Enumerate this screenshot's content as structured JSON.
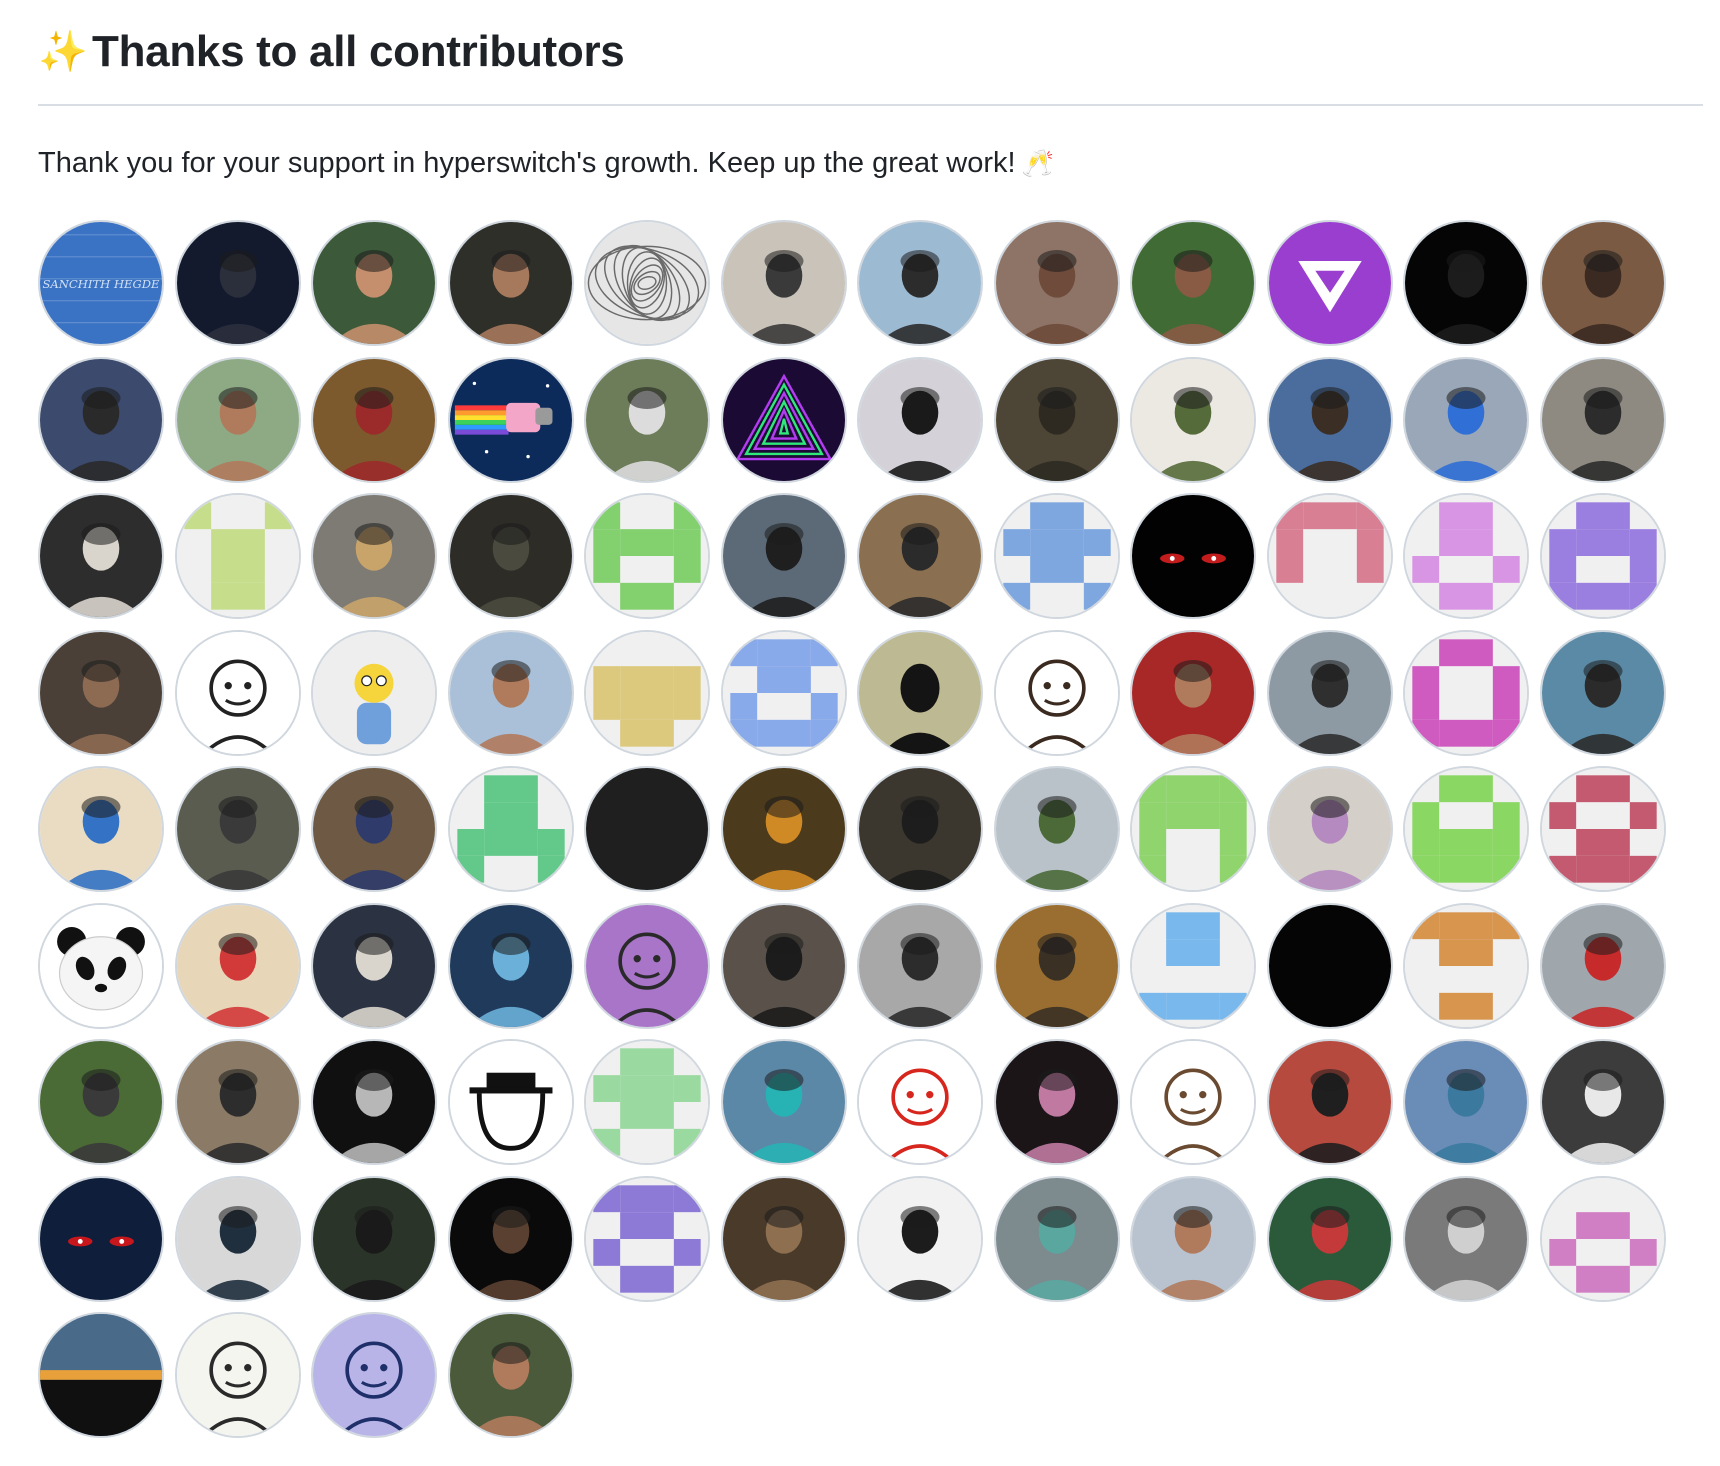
{
  "section": {
    "title": "Thanks to all contributors",
    "title_icon": "sparkles-icon",
    "message": "Thank you for your support in hyperswitch's growth. Keep up the great work!",
    "message_icon": "clinking-glasses-icon"
  },
  "contributors": [
    {
      "kind": "text",
      "bg": "#3a72c4",
      "fg": "#cfe0f5",
      "text": "SANCHITH HEGDE"
    },
    {
      "kind": "photo",
      "bg": "#141a2e",
      "fg": "#2b2f3c"
    },
    {
      "kind": "photo",
      "bg": "#3c5a3a",
      "fg": "#c58e6d"
    },
    {
      "kind": "photo",
      "bg": "#2f2f2a",
      "fg": "#a6795c"
    },
    {
      "kind": "swirl",
      "bg": "#e6e6e6",
      "fg": "#6a6a6a"
    },
    {
      "kind": "photo",
      "bg": "#c9c3ba",
      "fg": "#3a3a3a"
    },
    {
      "kind": "photo",
      "bg": "#9dbad3",
      "fg": "#2c2c2c"
    },
    {
      "kind": "photo",
      "bg": "#8e7467",
      "fg": "#6e4b3a"
    },
    {
      "kind": "photo",
      "bg": "#416b34",
      "fg": "#8a5b44"
    },
    {
      "kind": "logo",
      "bg": "#9a3ed0",
      "fg": "#ffffff"
    },
    {
      "kind": "photo",
      "bg": "#050505",
      "fg": "#1c1c1c"
    },
    {
      "kind": "photo",
      "bg": "#7a5a42",
      "fg": "#3b2a22"
    },
    {
      "kind": "photo",
      "bg": "#3b4a6d",
      "fg": "#2a2a2a"
    },
    {
      "kind": "photo",
      "bg": "#8eaa85",
      "fg": "#b07a5c"
    },
    {
      "kind": "photo",
      "bg": "#7d5a2e",
      "fg": "#9b2a2a"
    },
    {
      "kind": "nyan",
      "bg": "#0c2a5a",
      "fg": "#f3a6c7"
    },
    {
      "kind": "photo",
      "bg": "#6d7d5a",
      "fg": "#dcdcdc"
    },
    {
      "kind": "tunnel",
      "bg": "#1b0a33",
      "fg": "#b23cf0"
    },
    {
      "kind": "photo",
      "bg": "#d4d2d8",
      "fg": "#1a1a1a"
    },
    {
      "kind": "photo",
      "bg": "#4d4535",
      "fg": "#2e2a22"
    },
    {
      "kind": "photo",
      "bg": "#ece8e2",
      "fg": "#556b3a"
    },
    {
      "kind": "photo",
      "bg": "#4a6d9e",
      "fg": "#3b2e24"
    },
    {
      "kind": "photo",
      "bg": "#9aa7b8",
      "fg": "#2f6fd6"
    },
    {
      "kind": "photo",
      "bg": "#8e8a82",
      "fg": "#2c2c2c"
    },
    {
      "kind": "photo",
      "bg": "#2d2d2d",
      "fg": "#d9d4cc"
    },
    {
      "kind": "identicon",
      "bg": "#f0f0f0",
      "fg": "#c6de8c",
      "pattern": [
        1,
        0,
        0,
        1,
        0,
        1,
        1,
        0,
        0,
        1,
        1,
        0,
        0,
        1,
        1,
        0
      ]
    },
    {
      "kind": "photo",
      "bg": "#7e7b74",
      "fg": "#c9a46a"
    },
    {
      "kind": "photo",
      "bg": "#2d2c26",
      "fg": "#4b4a3e"
    },
    {
      "kind": "identicon",
      "bg": "#f0f0f0",
      "fg": "#83d06e",
      "pattern": [
        1,
        0,
        0,
        1,
        1,
        1,
        1,
        1,
        1,
        0,
        0,
        1,
        0,
        1,
        1,
        0
      ]
    },
    {
      "kind": "photo",
      "bg": "#5c6a78",
      "fg": "#1f1f1f"
    },
    {
      "kind": "photo",
      "bg": "#8a7050",
      "fg": "#2b2b2b"
    },
    {
      "kind": "identicon",
      "bg": "#f0f0f0",
      "fg": "#7ea6df",
      "pattern": [
        0,
        1,
        1,
        0,
        1,
        1,
        1,
        1,
        0,
        1,
        1,
        0,
        1,
        0,
        0,
        1
      ]
    },
    {
      "kind": "eyes",
      "bg": "#020202",
      "fg": "#c31c1c"
    },
    {
      "kind": "identicon",
      "bg": "#f0f0f0",
      "fg": "#d97f94",
      "pattern": [
        1,
        1,
        1,
        1,
        1,
        0,
        0,
        1,
        1,
        0,
        0,
        1,
        0,
        0,
        0,
        0
      ]
    },
    {
      "kind": "identicon",
      "bg": "#f0f0f0",
      "fg": "#d895e3",
      "pattern": [
        0,
        1,
        1,
        0,
        0,
        1,
        1,
        0,
        1,
        0,
        0,
        1,
        0,
        1,
        1,
        0
      ]
    },
    {
      "kind": "identicon",
      "bg": "#f0f0f0",
      "fg": "#9a7fe0",
      "pattern": [
        0,
        1,
        1,
        0,
        1,
        1,
        1,
        1,
        1,
        0,
        0,
        1,
        1,
        1,
        1,
        1
      ]
    },
    {
      "kind": "photo",
      "bg": "#4a4038",
      "fg": "#8d6a52"
    },
    {
      "kind": "cartoon",
      "bg": "#ffffff",
      "fg": "#222222"
    },
    {
      "kind": "simpson",
      "bg": "#eeeeee",
      "fg": "#f5d53b"
    },
    {
      "kind": "photo",
      "bg": "#a9c0d8",
      "fg": "#b07a5c"
    },
    {
      "kind": "identicon",
      "bg": "#f0f0f0",
      "fg": "#dcc97e",
      "pattern": [
        0,
        0,
        0,
        0,
        1,
        1,
        1,
        1,
        1,
        1,
        1,
        1,
        0,
        1,
        1,
        0
      ]
    },
    {
      "kind": "identicon",
      "bg": "#f0f0f0",
      "fg": "#88a9ea",
      "pattern": [
        1,
        1,
        1,
        1,
        0,
        1,
        1,
        0,
        1,
        0,
        0,
        1,
        1,
        1,
        1,
        1
      ]
    },
    {
      "kind": "silhouette",
      "bg": "#bdb992",
      "fg": "#141414"
    },
    {
      "kind": "cartoon",
      "bg": "#ffffff",
      "fg": "#3a2a1f"
    },
    {
      "kind": "photo",
      "bg": "#a82828",
      "fg": "#b07a5c"
    },
    {
      "kind": "photo",
      "bg": "#8d99a3",
      "fg": "#2f2f2f"
    },
    {
      "kind": "identicon",
      "bg": "#f0f0f0",
      "fg": "#cf5ac0",
      "pattern": [
        0,
        1,
        1,
        0,
        1,
        0,
        0,
        1,
        1,
        0,
        0,
        1,
        1,
        1,
        1,
        1
      ]
    },
    {
      "kind": "photo",
      "bg": "#5b8aa6",
      "fg": "#2b2b2b"
    },
    {
      "kind": "photo",
      "bg": "#e9dcc2",
      "fg": "#3372c4"
    },
    {
      "kind": "photo",
      "bg": "#5a5c50",
      "fg": "#3a3a3a"
    },
    {
      "kind": "photo",
      "bg": "#6e5a44",
      "fg": "#2f3b6a"
    },
    {
      "kind": "identicon",
      "bg": "#f0f0f0",
      "fg": "#62c98a",
      "pattern": [
        0,
        1,
        1,
        0,
        0,
        1,
        1,
        0,
        1,
        1,
        1,
        1,
        1,
        0,
        0,
        1
      ]
    },
    {
      "kind": "solid",
      "bg": "#1f1f1f",
      "fg": "#1f1f1f"
    },
    {
      "kind": "photo",
      "bg": "#4c3a1c",
      "fg": "#d08a25"
    },
    {
      "kind": "photo",
      "bg": "#3b362e",
      "fg": "#1d1d1d"
    },
    {
      "kind": "photo",
      "bg": "#b8c2c8",
      "fg": "#4b6a38"
    },
    {
      "kind": "identicon",
      "bg": "#f0f0f0",
      "fg": "#8fd46c",
      "pattern": [
        1,
        1,
        1,
        1,
        1,
        1,
        1,
        1,
        1,
        0,
        0,
        1,
        1,
        0,
        0,
        1
      ]
    },
    {
      "kind": "photo",
      "bg": "#d4cfc8",
      "fg": "#b58ac0"
    },
    {
      "kind": "identicon",
      "bg": "#f0f0f0",
      "fg": "#8bd763",
      "pattern": [
        0,
        1,
        1,
        0,
        1,
        0,
        0,
        1,
        1,
        1,
        1,
        1,
        1,
        1,
        1,
        1
      ]
    },
    {
      "kind": "identicon",
      "bg": "#f0f0f0",
      "fg": "#c45a70",
      "pattern": [
        0,
        1,
        1,
        0,
        1,
        0,
        0,
        1,
        0,
        1,
        1,
        0,
        1,
        1,
        1,
        1
      ]
    },
    {
      "kind": "panda",
      "bg": "#ffffff",
      "fg": "#111111"
    },
    {
      "kind": "photo",
      "bg": "#e8d6b8",
      "fg": "#d23a3a"
    },
    {
      "kind": "photo",
      "bg": "#2b3342",
      "fg": "#d9d4cc"
    },
    {
      "kind": "photo",
      "bg": "#1f3a5a",
      "fg": "#6ab0d8"
    },
    {
      "kind": "cartoon",
      "bg": "#a875c9",
      "fg": "#2a2a2a"
    },
    {
      "kind": "photo",
      "bg": "#5a524a",
      "fg": "#1c1c1c"
    },
    {
      "kind": "photo",
      "bg": "#a8a8a8",
      "fg": "#2c2c2c"
    },
    {
      "kind": "photo",
      "bg": "#9a6e30",
      "fg": "#3a3024"
    },
    {
      "kind": "identicon",
      "bg": "#f0f0f0",
      "fg": "#78b8ec",
      "pattern": [
        0,
        1,
        1,
        0,
        0,
        1,
        1,
        0,
        0,
        0,
        0,
        0,
        1,
        1,
        1,
        1
      ]
    },
    {
      "kind": "solid",
      "bg": "#050505",
      "fg": "#050505"
    },
    {
      "kind": "identicon",
      "bg": "#f0f0f0",
      "fg": "#d8954e",
      "pattern": [
        1,
        1,
        1,
        1,
        0,
        1,
        1,
        0,
        0,
        0,
        0,
        0,
        0,
        1,
        1,
        0
      ]
    },
    {
      "kind": "photo",
      "bg": "#9fa7ad",
      "fg": "#c62a2a"
    },
    {
      "kind": "photo",
      "bg": "#4a6a36",
      "fg": "#3a3a3a"
    },
    {
      "kind": "photo",
      "bg": "#8a7a66",
      "fg": "#2d2d2d"
    },
    {
      "kind": "photo",
      "bg": "#101010",
      "fg": "#b7b7b7"
    },
    {
      "kind": "hat",
      "bg": "#ffffff",
      "fg": "#111111"
    },
    {
      "kind": "identicon",
      "bg": "#f0f0f0",
      "fg": "#9ad9a0",
      "pattern": [
        0,
        1,
        1,
        0,
        1,
        1,
        1,
        1,
        0,
        1,
        1,
        0,
        1,
        0,
        0,
        1
      ]
    },
    {
      "kind": "photo",
      "bg": "#5c88a8",
      "fg": "#27b3b3"
    },
    {
      "kind": "cartoon",
      "bg": "#ffffff",
      "fg": "#d6261d"
    },
    {
      "kind": "photo",
      "bg": "#1b1518",
      "fg": "#c07aa2"
    },
    {
      "kind": "cartoon",
      "bg": "#ffffff",
      "fg": "#6a4a30"
    },
    {
      "kind": "photo",
      "bg": "#b64a3e",
      "fg": "#1f1f1f"
    },
    {
      "kind": "photo",
      "bg": "#6a8db8",
      "fg": "#3b7a9e"
    },
    {
      "kind": "photo",
      "bg": "#3c3c3c",
      "fg": "#e8e8e8"
    },
    {
      "kind": "eyes",
      "bg": "#0f1e3a",
      "fg": "#c8171c"
    },
    {
      "kind": "photo",
      "bg": "#d8d8d8",
      "fg": "#1f2f3e"
    },
    {
      "kind": "photo",
      "bg": "#2a3428",
      "fg": "#1a1a1a"
    },
    {
      "kind": "photo",
      "bg": "#0a0a0a",
      "fg": "#5a4030"
    },
    {
      "kind": "identicon",
      "bg": "#f0f0f0",
      "fg": "#8d7ad6",
      "pattern": [
        1,
        1,
        1,
        1,
        0,
        1,
        1,
        0,
        1,
        0,
        0,
        1,
        0,
        1,
        1,
        0
      ]
    },
    {
      "kind": "photo",
      "bg": "#4a3a2a",
      "fg": "#8e7050"
    },
    {
      "kind": "photo",
      "bg": "#f2f2f2",
      "fg": "#1c1c1c"
    },
    {
      "kind": "photo",
      "bg": "#7d8a8e",
      "fg": "#5aa7a0"
    },
    {
      "kind": "photo",
      "bg": "#b9c3cf",
      "fg": "#b07a5c"
    },
    {
      "kind": "photo",
      "bg": "#2a5a3a",
      "fg": "#c43a3a"
    },
    {
      "kind": "photo",
      "bg": "#7a7a7a",
      "fg": "#cfcfcf"
    },
    {
      "kind": "identicon",
      "bg": "#f0f0f0",
      "fg": "#d17fc4",
      "pattern": [
        0,
        0,
        0,
        0,
        0,
        1,
        1,
        0,
        1,
        0,
        0,
        1,
        0,
        1,
        1,
        0
      ]
    },
    {
      "kind": "sunset",
      "bg": "#4a6a8a",
      "fg": "#e8a13a"
    },
    {
      "kind": "cartoon",
      "bg": "#f5f5f0",
      "fg": "#2a2a2a"
    },
    {
      "kind": "cartoon",
      "bg": "#b8b4e8",
      "fg": "#1f2f6a"
    },
    {
      "kind": "photo",
      "bg": "#4a5a3a",
      "fg": "#b07a5c"
    }
  ]
}
